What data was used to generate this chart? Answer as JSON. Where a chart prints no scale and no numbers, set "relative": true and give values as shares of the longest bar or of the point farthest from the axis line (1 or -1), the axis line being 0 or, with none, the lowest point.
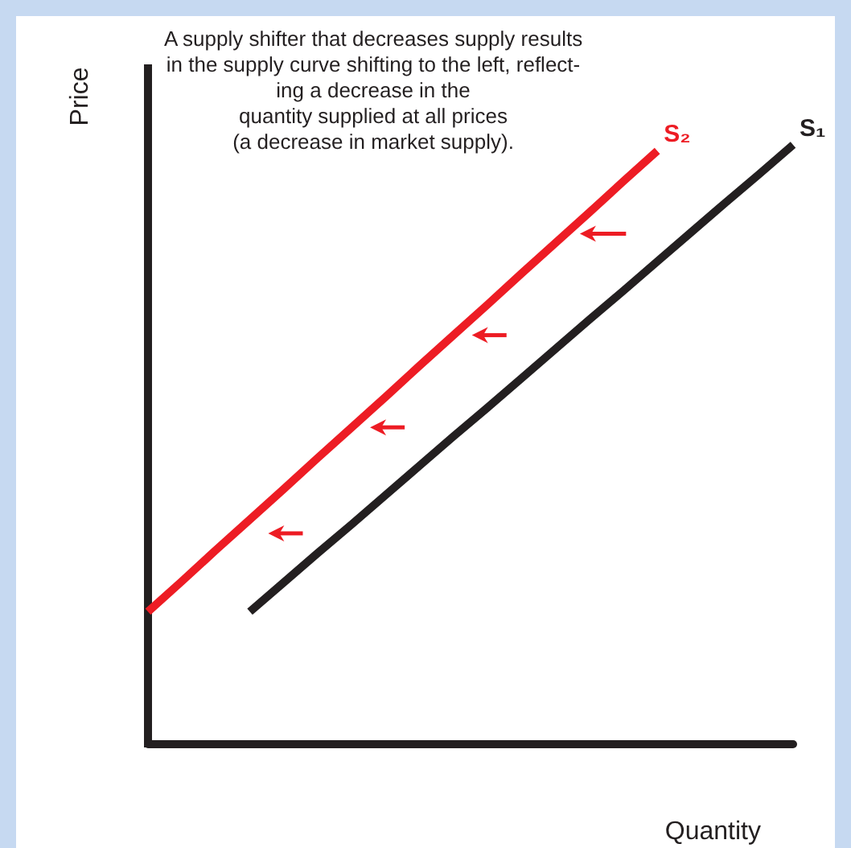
{
  "chart_data": {
    "type": "line",
    "relative": true,
    "xlabel": "Quantity",
    "ylabel": "Price",
    "annotations": [
      "A supply shifter that decreases supply results\nin the supply curve shifting to the left, reflect-\ning a decrease in the\nquantity supplied at all prices\n(a decrease in market supply)."
    ],
    "categories": [
      null,
      null,
      null,
      null,
      null,
      null,
      null,
      null,
      null,
      null,
      null,
      null,
      null,
      null,
      null,
      null,
      null,
      null,
      null,
      null
    ],
    "grid": false,
    "legend": false,
    "marker": "none",
    "line_style": "solid",
    "series": [
      {
        "name": "S₂",
        "color": "#ed1c24",
        "values": [
          0.22,
          0.271,
          0.323,
          0.374,
          0.425,
          0.477,
          0.528,
          0.579,
          0.631,
          0.682,
          0.733,
          0.785,
          0.836,
          0.887,
          0.939,
          0.99,
          null,
          null,
          null,
          null
        ]
      },
      {
        "name": "S₁",
        "color": "#231f20",
        "values": [
          null,
          null,
          null,
          0.22,
          0.269,
          0.318,
          0.366,
          0.415,
          0.464,
          0.513,
          0.561,
          0.61,
          0.659,
          0.708,
          0.756,
          0.805,
          0.854,
          0.903,
          0.951,
          1
        ]
      }
    ]
  }
}
